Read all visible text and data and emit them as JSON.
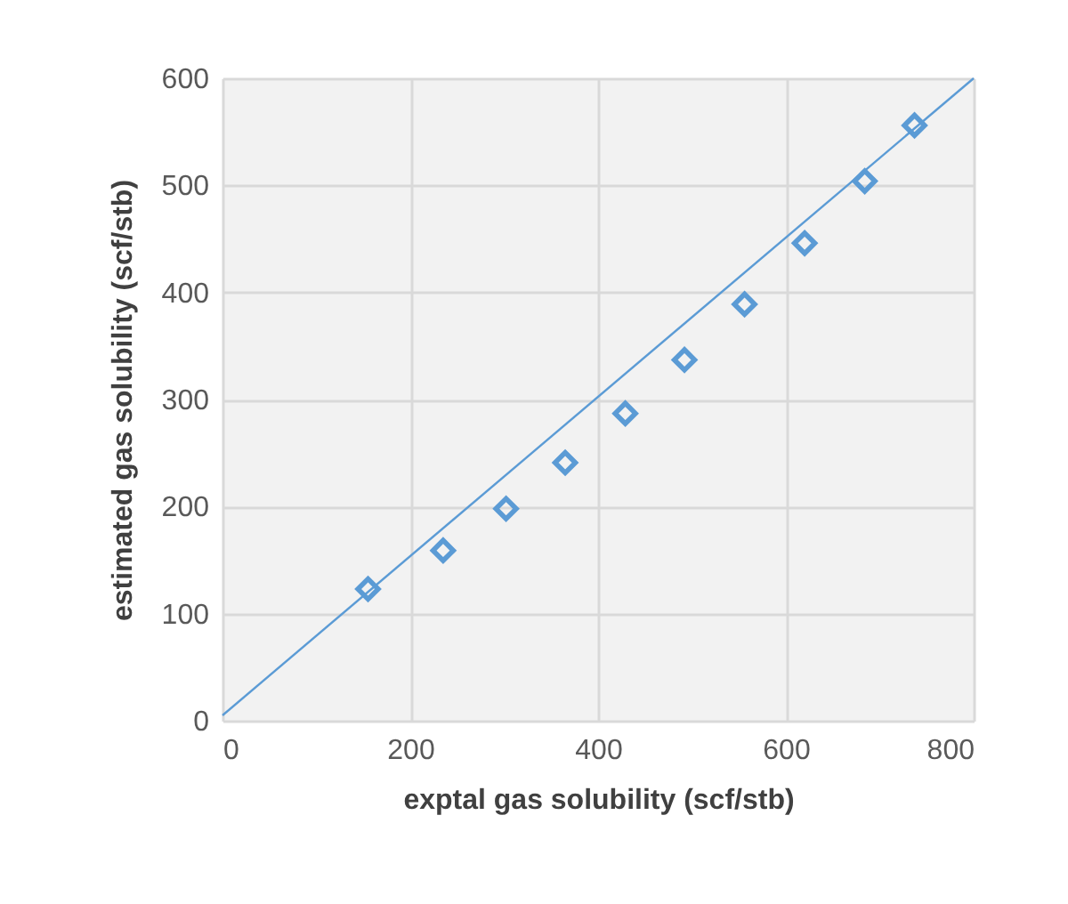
{
  "chart_data": {
    "type": "scatter",
    "xlabel": "exptal gas solubility (scf/stb)",
    "ylabel": "estimated gas solubility (scf/stb)",
    "xlim": [
      0,
      800
    ],
    "ylim": [
      0,
      600
    ],
    "xticks": [
      0,
      200,
      400,
      600,
      800
    ],
    "yticks": [
      0,
      100,
      200,
      300,
      400,
      500,
      600
    ],
    "grid": true,
    "series": [
      {
        "color": "#5b9bd5",
        "marker": "diamond",
        "x": [
          155,
          235,
          302,
          365,
          429,
          492,
          556,
          620,
          684,
          737
        ],
        "values": [
          123,
          159,
          198,
          241,
          287,
          337,
          389,
          446,
          504,
          556
        ]
      },
      {
        "type": "line",
        "marker": "none",
        "color": "#5b9bd5",
        "x": [
          0,
          800
        ],
        "values": [
          5,
          600
        ]
      }
    ]
  }
}
